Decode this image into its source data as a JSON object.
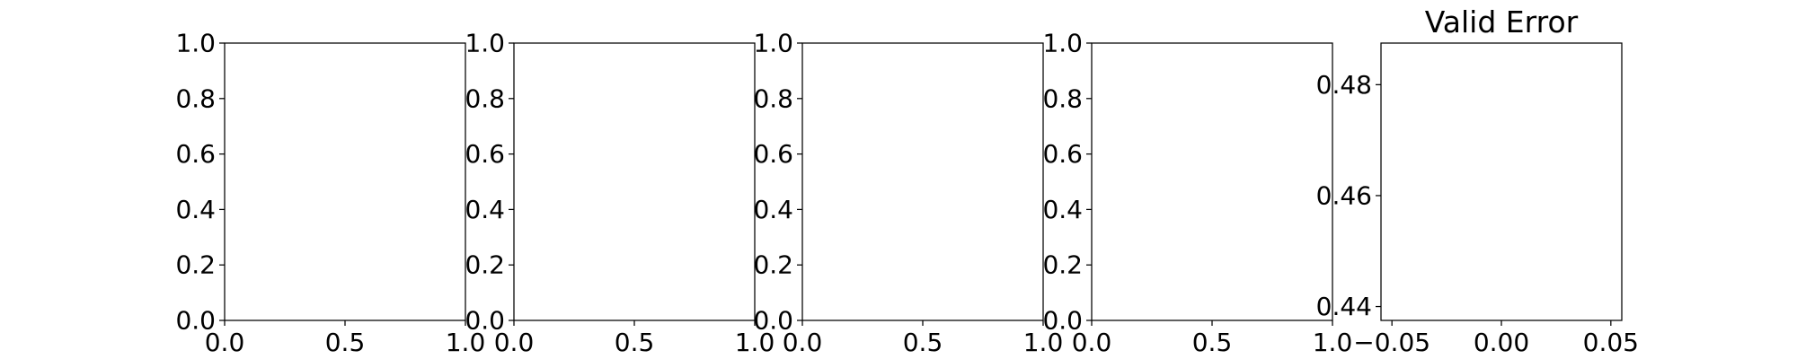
{
  "chart_data": [
    {
      "type": "line",
      "title": "",
      "xlabel": "",
      "ylabel": "",
      "xlim": [
        0.0,
        1.0
      ],
      "ylim": [
        0.0,
        1.0
      ],
      "xticks": [
        "0.0",
        "0.5",
        "1.0"
      ],
      "yticks": [
        "0.0",
        "0.2",
        "0.4",
        "0.6",
        "0.8",
        "1.0"
      ],
      "grid": false,
      "series": []
    },
    {
      "type": "line",
      "title": "",
      "xlabel": "",
      "ylabel": "",
      "xlim": [
        0.0,
        1.0
      ],
      "ylim": [
        0.0,
        1.0
      ],
      "xticks": [
        "0.0",
        "0.5",
        "1.0"
      ],
      "yticks": [
        "0.0",
        "0.2",
        "0.4",
        "0.6",
        "0.8",
        "1.0"
      ],
      "grid": false,
      "series": []
    },
    {
      "type": "line",
      "title": "",
      "xlabel": "",
      "ylabel": "",
      "xlim": [
        0.0,
        1.0
      ],
      "ylim": [
        0.0,
        1.0
      ],
      "xticks": [
        "0.0",
        "0.5",
        "1.0"
      ],
      "yticks": [
        "0.0",
        "0.2",
        "0.4",
        "0.6",
        "0.8",
        "1.0"
      ],
      "grid": false,
      "series": []
    },
    {
      "type": "line",
      "title": "",
      "xlabel": "",
      "ylabel": "",
      "xlim": [
        0.0,
        1.0
      ],
      "ylim": [
        0.0,
        1.0
      ],
      "xticks": [
        "0.0",
        "0.5",
        "1.0"
      ],
      "yticks": [
        "0.0",
        "0.2",
        "0.4",
        "0.6",
        "0.8",
        "1.0"
      ],
      "grid": false,
      "series": []
    },
    {
      "type": "line",
      "title": "Valid Error",
      "xlabel": "",
      "ylabel": "",
      "xlim": [
        -0.055,
        0.055
      ],
      "ylim": [
        0.4375,
        0.4875
      ],
      "xticks": [
        "−0.05",
        "0.00",
        "0.05"
      ],
      "yticks": [
        "0.44",
        "0.46",
        "0.48"
      ],
      "grid": false,
      "series": []
    }
  ]
}
